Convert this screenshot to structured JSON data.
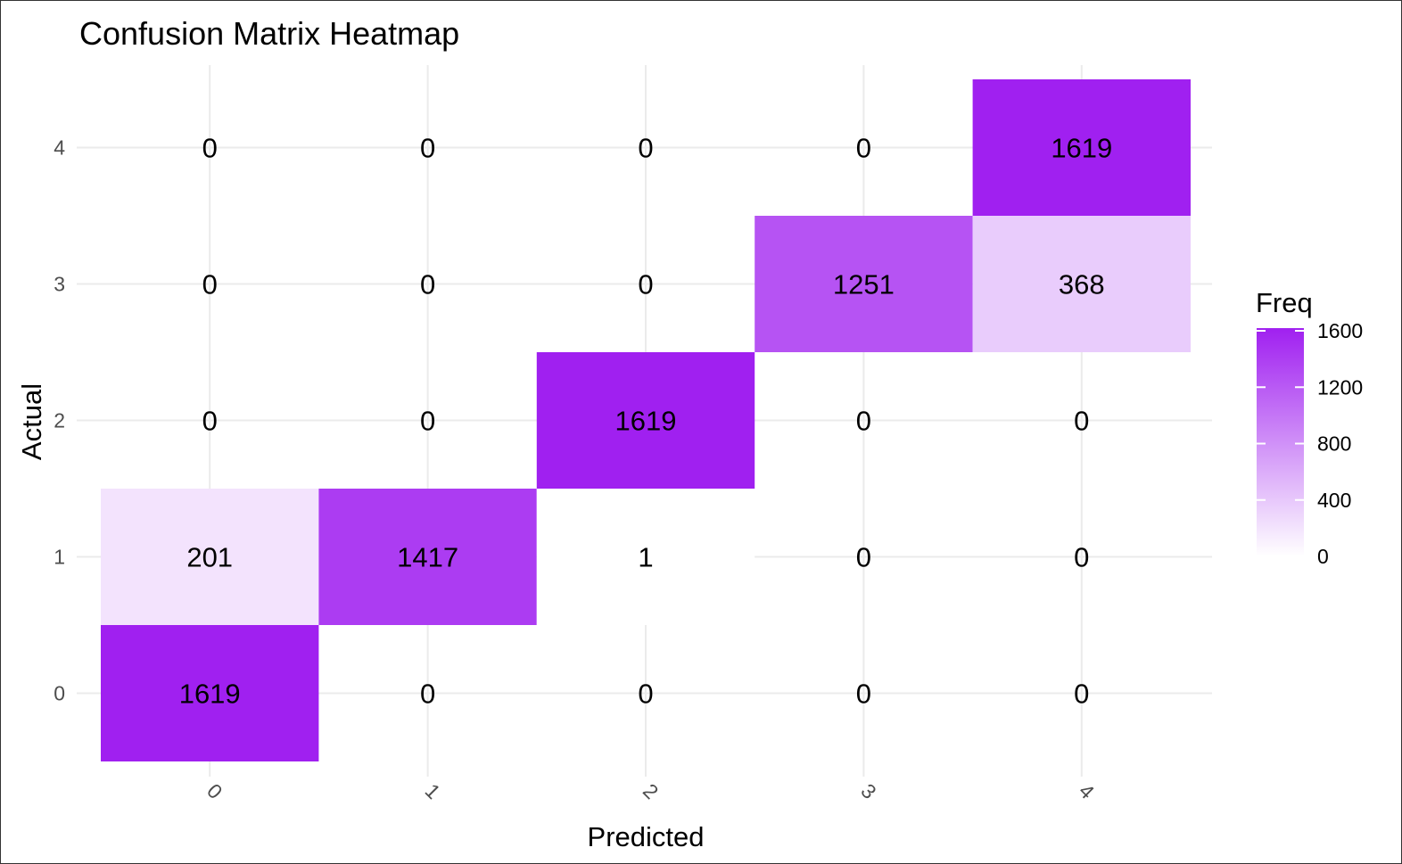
{
  "chart_data": {
    "type": "heatmap",
    "title": "Confusion Matrix Heatmap",
    "xlabel": "Predicted",
    "ylabel": "Actual",
    "x_categories": [
      "0",
      "1",
      "2",
      "3",
      "4"
    ],
    "y_categories": [
      "0",
      "1",
      "2",
      "3",
      "4"
    ],
    "cells": [
      {
        "actual": "0",
        "predicted": "0",
        "value": 1619
      },
      {
        "actual": "0",
        "predicted": "1",
        "value": 0
      },
      {
        "actual": "0",
        "predicted": "2",
        "value": 0
      },
      {
        "actual": "0",
        "predicted": "3",
        "value": 0
      },
      {
        "actual": "0",
        "predicted": "4",
        "value": 0
      },
      {
        "actual": "1",
        "predicted": "0",
        "value": 201
      },
      {
        "actual": "1",
        "predicted": "1",
        "value": 1417
      },
      {
        "actual": "1",
        "predicted": "2",
        "value": 1
      },
      {
        "actual": "1",
        "predicted": "3",
        "value": 0
      },
      {
        "actual": "1",
        "predicted": "4",
        "value": 0
      },
      {
        "actual": "2",
        "predicted": "0",
        "value": 0
      },
      {
        "actual": "2",
        "predicted": "1",
        "value": 0
      },
      {
        "actual": "2",
        "predicted": "2",
        "value": 1619
      },
      {
        "actual": "2",
        "predicted": "3",
        "value": 0
      },
      {
        "actual": "2",
        "predicted": "4",
        "value": 0
      },
      {
        "actual": "3",
        "predicted": "0",
        "value": 0
      },
      {
        "actual": "3",
        "predicted": "1",
        "value": 0
      },
      {
        "actual": "3",
        "predicted": "2",
        "value": 0
      },
      {
        "actual": "3",
        "predicted": "3",
        "value": 1251
      },
      {
        "actual": "3",
        "predicted": "4",
        "value": 368
      },
      {
        "actual": "4",
        "predicted": "0",
        "value": 0
      },
      {
        "actual": "4",
        "predicted": "1",
        "value": 0
      },
      {
        "actual": "4",
        "predicted": "2",
        "value": 0
      },
      {
        "actual": "4",
        "predicted": "3",
        "value": 0
      },
      {
        "actual": "4",
        "predicted": "4",
        "value": 1619
      }
    ],
    "legend": {
      "title": "Freq",
      "breaks": [
        0,
        400,
        800,
        1200,
        1600
      ],
      "range": [
        0,
        1619
      ],
      "low_color": "#ffffff",
      "high_color": "#a020f0",
      "placement": "right"
    },
    "grid": true
  }
}
